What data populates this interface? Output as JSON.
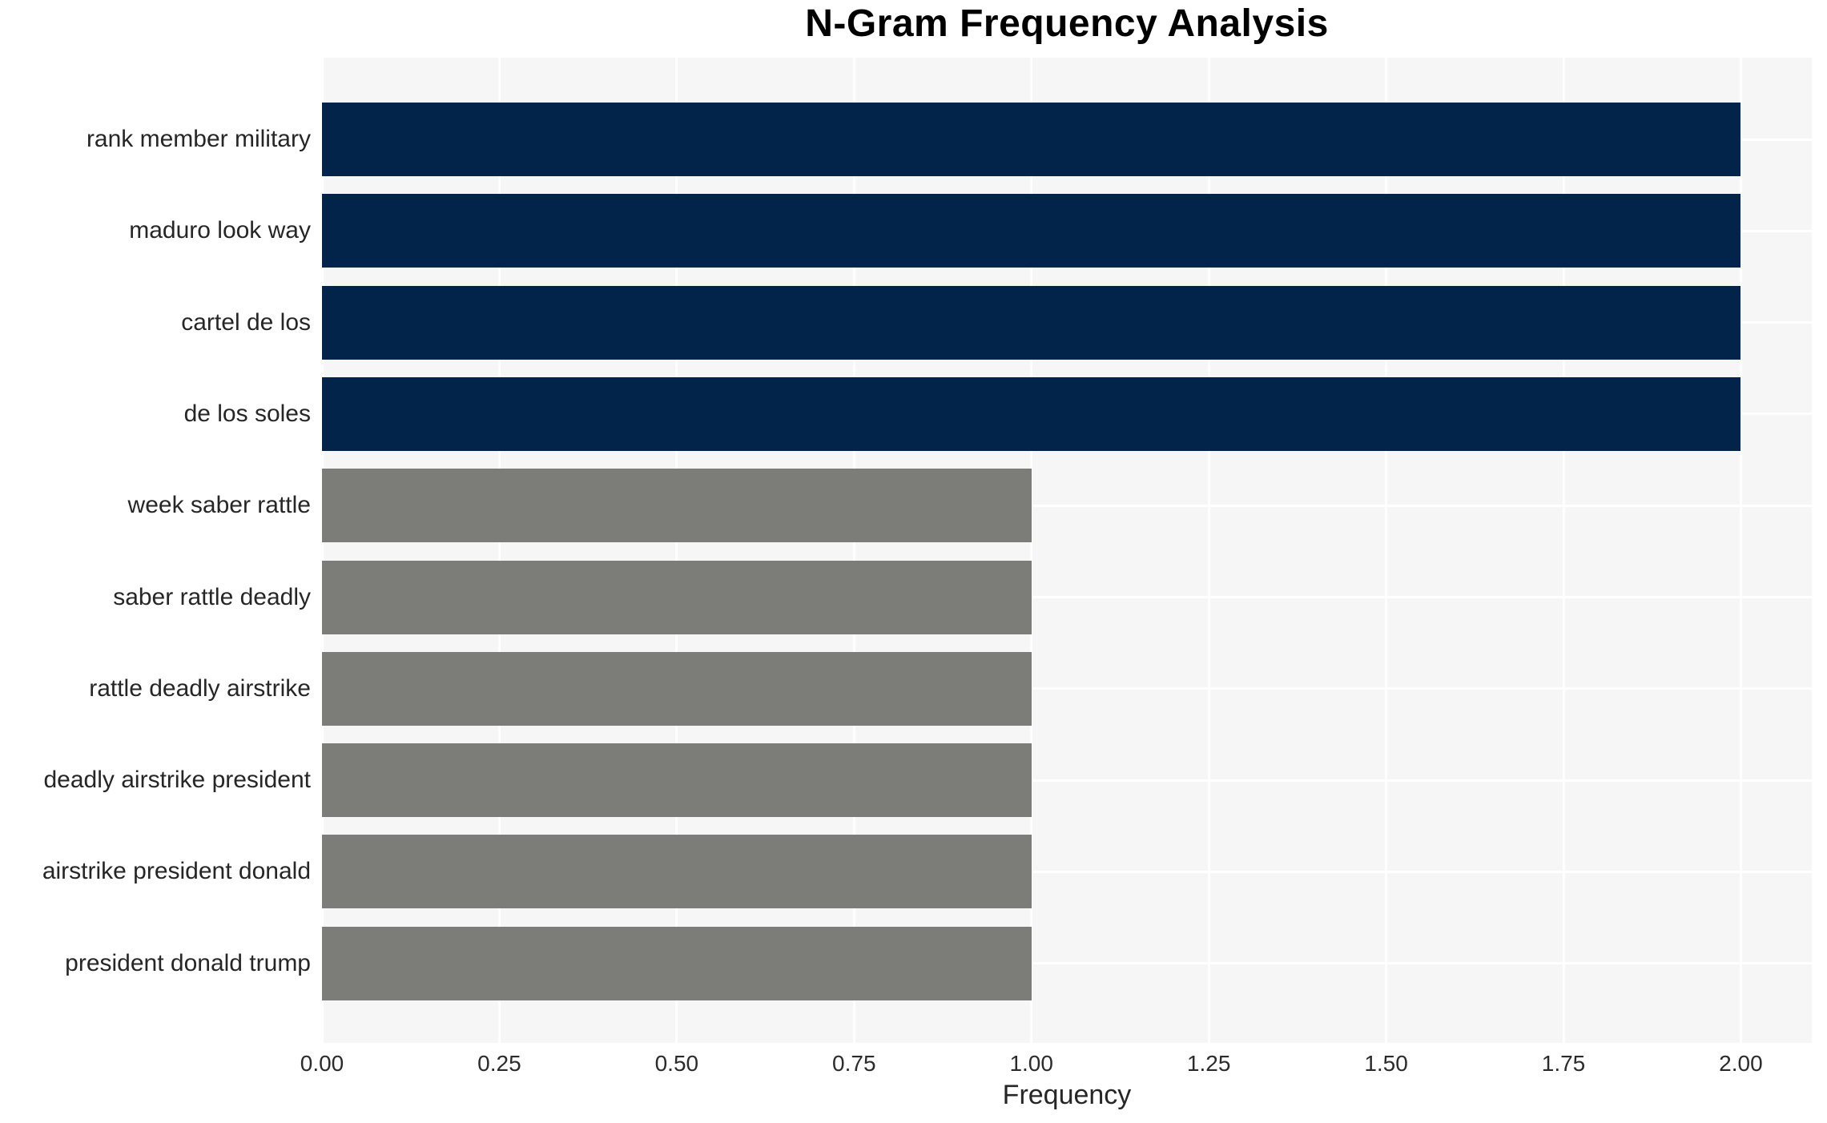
{
  "title": "N-Gram Frequency Analysis",
  "x_axis": {
    "label": "Frequency",
    "tick_labels": [
      "0.00",
      "0.25",
      "0.50",
      "0.75",
      "1.00",
      "1.25",
      "1.50",
      "1.75",
      "2.00"
    ],
    "tick_values": [
      0,
      0.25,
      0.5,
      0.75,
      1.0,
      1.25,
      1.5,
      1.75,
      2.0
    ]
  },
  "colors": {
    "bar_high_freq": "#02234a",
    "bar_low_freq": "#7c7c78",
    "plot_background": "#f6f6f6",
    "gridline": "#ffffff",
    "tick_text": "#2b2b2b",
    "title_text": "#000000"
  },
  "chart_data": {
    "type": "bar",
    "orientation": "horizontal",
    "title": "N-Gram Frequency Analysis",
    "xlabel": "Frequency",
    "ylabel": "",
    "xlim": [
      0,
      2.1
    ],
    "grid": true,
    "legend": false,
    "categories": [
      "rank member military",
      "maduro look way",
      "cartel de los",
      "de los soles",
      "week saber rattle",
      "saber rattle deadly",
      "rattle deadly airstrike",
      "deadly airstrike president",
      "airstrike president donald",
      "president donald trump"
    ],
    "values": [
      2,
      2,
      2,
      2,
      1,
      1,
      1,
      1,
      1,
      1
    ],
    "bar_colors": [
      "#02234a",
      "#02234a",
      "#02234a",
      "#02234a",
      "#7c7c78",
      "#7c7c78",
      "#7c7c78",
      "#7c7c78",
      "#7c7c78",
      "#7c7c78"
    ]
  }
}
